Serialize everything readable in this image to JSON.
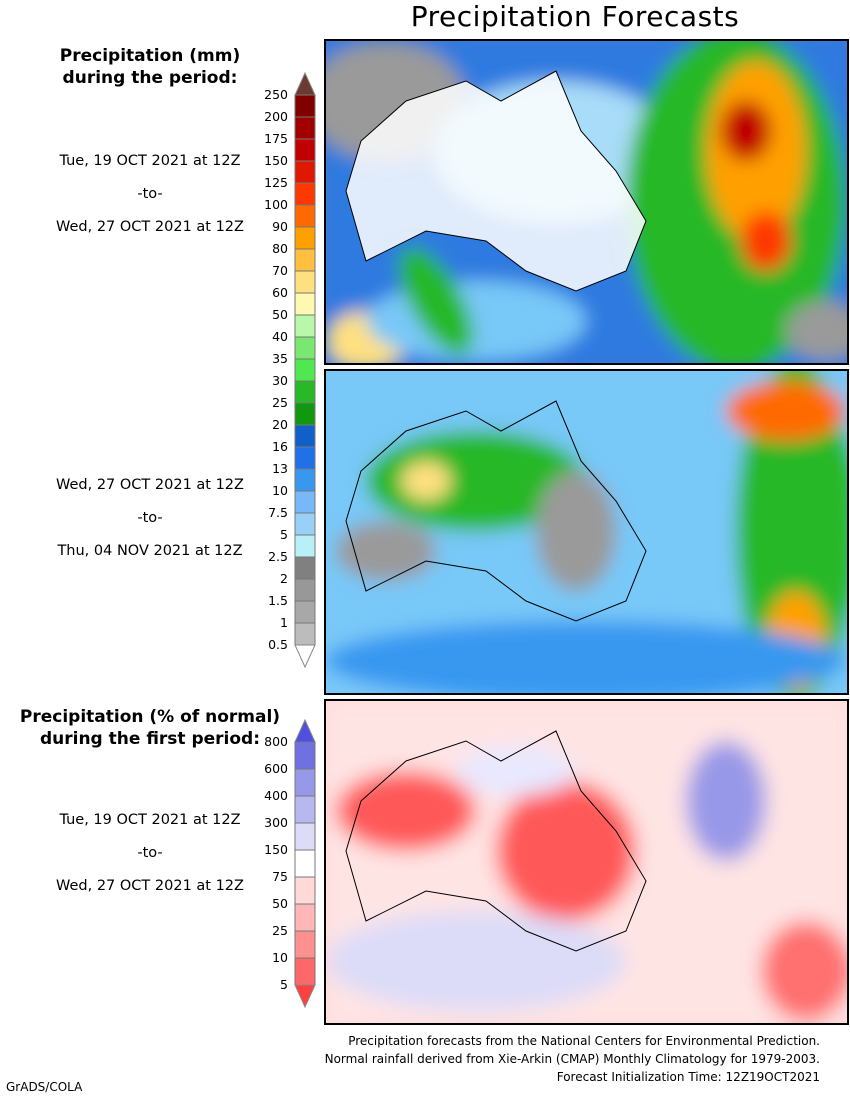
{
  "title": "Precipitation Forecasts",
  "legend_top": {
    "heading": [
      "Precipitation (mm)",
      "during the period:"
    ],
    "labels": [
      "250",
      "200",
      "175",
      "150",
      "125",
      "100",
      "90",
      "80",
      "70",
      "60",
      "50",
      "40",
      "35",
      "30",
      "25",
      "20",
      "16",
      "13",
      "10",
      "7.5",
      "5",
      "2.5",
      "2",
      "1.5",
      "1",
      "0.5"
    ],
    "colors": [
      "#800000",
      "#a00000",
      "#c00000",
      "#e01800",
      "#ff3800",
      "#ff6a00",
      "#ffa000",
      "#ffc040",
      "#ffe080",
      "#fff8b0",
      "#b8f8a8",
      "#78e870",
      "#50e850",
      "#28b828",
      "#109810",
      "#1060c8",
      "#2070e8",
      "#3898f0",
      "#78b8f8",
      "#98d0f8",
      "#b8f0f8",
      "#808080",
      "#989898",
      "#a8a8a8",
      "#bcbcbc"
    ],
    "over_color": "#6b3a30",
    "under_color": "#ffffff"
  },
  "period1": {
    "start": "Tue, 19 OCT 2021 at 12Z",
    "sep": "-to-",
    "end": "Wed, 27 OCT 2021 at 12Z"
  },
  "period2": {
    "start": "Wed, 27 OCT 2021 at 12Z",
    "sep": "-to-",
    "end": "Thu, 04 NOV 2021 at 12Z"
  },
  "legend_bottom": {
    "heading": [
      "Precipitation (% of normal)",
      "during the first period:"
    ],
    "labels": [
      "800",
      "600",
      "400",
      "300",
      "150",
      "75",
      "50",
      "25",
      "10",
      "5"
    ],
    "colors": [
      "#7070e0",
      "#9898e8",
      "#b8b8f0",
      "#dcdcf8",
      "#ffffff",
      "#ffd8d8",
      "#ffb8b8",
      "#ff9090",
      "#ff6868"
    ],
    "over_color": "#5050e0",
    "under_color": "#ff4040"
  },
  "period3": {
    "start": "Tue, 19 OCT 2021 at 12Z",
    "sep": "-to-",
    "end": "Wed, 27 OCT 2021 at 12Z"
  },
  "footer": [
    "Precipitation forecasts from the National Centers for Environmental Prediction.",
    "Normal rainfall derived from Xie-Arkin (CMAP) Monthly Climatology for 1979-2003.",
    "Forecast Initialization Time: 12Z19OCT2021"
  ],
  "credit": "GrADS/COLA"
}
